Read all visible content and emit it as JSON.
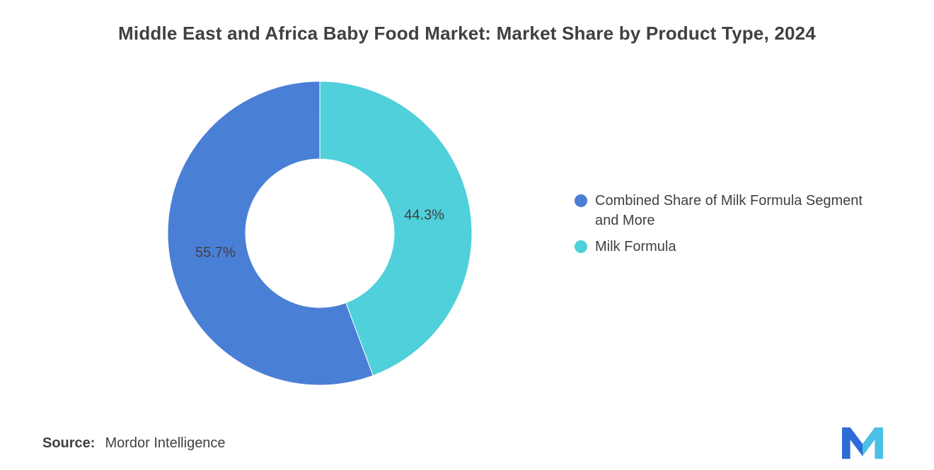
{
  "chart_data": {
    "type": "pie",
    "subtype": "donut",
    "title": "Middle East and Africa Baby Food Market: Market Share by Product Type, 2024",
    "slices": [
      {
        "label": "Combined Share of Milk Formula Segment and More",
        "value": 55.7,
        "color": "#4A7FD6"
      },
      {
        "label": "Milk Formula",
        "value": 44.3,
        "color": "#4FD0DB"
      }
    ],
    "rotation": 159.5,
    "inner_radius_ratio": 0.49,
    "legend_position": "right",
    "data_labels": [
      "55.7%",
      "44.3%"
    ],
    "label_color": "#404040",
    "background": "#ffffff"
  },
  "source": {
    "label": "Source:",
    "value": "Mordor Intelligence"
  },
  "branding": {
    "logo": "mordor-intelligence-logo",
    "logo_color_left": "#2D6BD8",
    "logo_color_right": "#4BBFE6"
  }
}
